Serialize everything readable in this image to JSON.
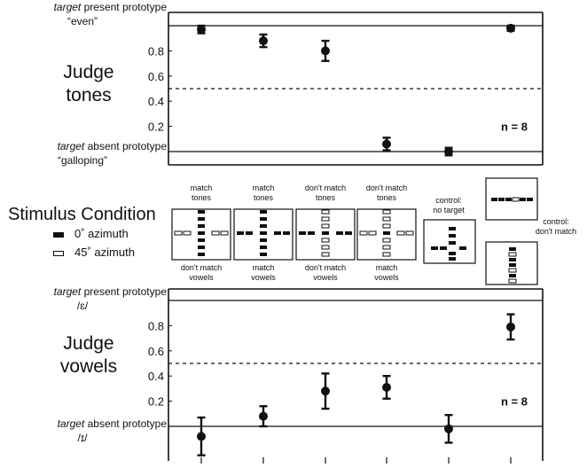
{
  "chart_data": [
    {
      "type": "scatter",
      "panel": "Judge tones",
      "label_lines": [
        "Judge",
        "tones"
      ],
      "n_label": "n = 8",
      "yticks": [
        "0.8",
        "0.6",
        "0.4",
        "0.2"
      ],
      "ylim": [
        -0.12,
        1.12
      ],
      "present_prototype": {
        "prefix": "target",
        "text": "present prototype",
        "value": 1.0,
        "name": "“even”"
      },
      "absent_prototype": {
        "prefix": "target",
        "text": "absent prototype",
        "value": 0.0,
        "name": "“galloping”"
      },
      "chance_level": 0.5,
      "points": [
        {
          "condition": "match tones / don't match vowels",
          "y": 0.97,
          "err": 0.03
        },
        {
          "condition": "match tones / match vowels",
          "y": 0.88,
          "err": 0.05
        },
        {
          "condition": "don't match tones / don't match vowels",
          "y": 0.8,
          "err": 0.08
        },
        {
          "condition": "don't match tones / match vowels",
          "y": 0.06,
          "err": 0.05
        },
        {
          "condition": "control: no target",
          "y": 0.0,
          "err": 0.03
        },
        {
          "condition": "control: don't match",
          "y": 0.98,
          "err": 0.02
        }
      ]
    },
    {
      "type": "scatter",
      "panel": "Judge vowels",
      "label_lines": [
        "Judge",
        "vowels"
      ],
      "n_label": "n = 8",
      "yticks": [
        "0.8",
        "0.6",
        "0.4",
        "0.2"
      ],
      "ylim": [
        -0.12,
        1.12
      ],
      "present_prototype": {
        "prefix": "target",
        "text": "present prototype",
        "value": 1.0,
        "name": "/ɛ/"
      },
      "absent_prototype": {
        "prefix": "target",
        "text": "absent prototype",
        "value": 0.0,
        "name": "/ɪ/"
      },
      "chance_level": 0.5,
      "points": [
        {
          "condition": "match tones / don't match vowels",
          "y": -0.08,
          "err": 0.15
        },
        {
          "condition": "match tones / match vowels",
          "y": 0.08,
          "err": 0.08
        },
        {
          "condition": "don't match tones / don't match vowels",
          "y": 0.28,
          "err": 0.14
        },
        {
          "condition": "don't match tones / match vowels",
          "y": 0.31,
          "err": 0.09
        },
        {
          "condition": "control: no target",
          "y": -0.02,
          "err": 0.11
        },
        {
          "condition": "control: don't match",
          "y": 0.79,
          "err": 0.1
        }
      ]
    }
  ],
  "stimulus": {
    "title": "Stimulus Condition",
    "legend": [
      {
        "label": "0˚ azimuth",
        "color": "#111111"
      },
      {
        "label": "45˚ azimuth",
        "color": "#ffffff"
      }
    ],
    "top_labels": [
      "match\ntones",
      "match\ntones",
      "don't match\ntones",
      "don't match\ntones"
    ],
    "bottom_labels": [
      "don't match\nvowels",
      "match\nvowels",
      "don't match\nvowels",
      "match\nvowels"
    ],
    "control_no_target": "control:\nno target",
    "control_dont_match": "control:\ndon't match"
  }
}
